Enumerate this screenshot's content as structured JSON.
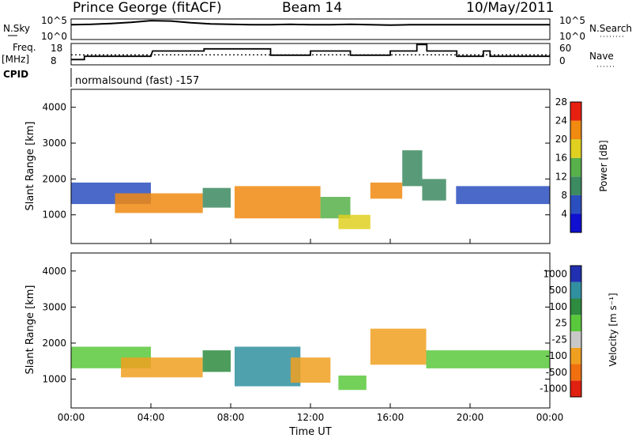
{
  "header": {
    "station": "Prince George (fitACF)",
    "beam": "Beam 14",
    "date": "10/May/2011"
  },
  "panels": {
    "nsky": {
      "label": "N.Sky",
      "ticks": [
        "10^5",
        "10^0"
      ]
    },
    "nsearch": {
      "label": "N.Search",
      "ticks": [
        "10^5",
        "10^0"
      ]
    },
    "freq": {
      "label_line1": "Freq.",
      "label_line2": "[MHz]",
      "ticks": [
        "18",
        "8"
      ]
    },
    "nave": {
      "label": "Nave",
      "ticks": [
        "60",
        "0"
      ]
    },
    "cpid": {
      "label": "CPID",
      "value": "normalsound (fast) -157"
    }
  },
  "chart_data": [
    {
      "type": "line",
      "name": "N.Sky / N.Search",
      "x": [
        "00:00",
        "01:00",
        "02:00",
        "03:00",
        "04:00",
        "05:00",
        "06:00",
        "07:00",
        "08:00",
        "09:00",
        "10:00",
        "11:00",
        "12:00",
        "13:00",
        "14:00",
        "15:00",
        "16:00",
        "17:00",
        "18:00",
        "19:00",
        "20:00",
        "21:00",
        "22:00",
        "23:00",
        "24:00"
      ],
      "series": [
        {
          "name": "N.Sky",
          "values": [
            3.6,
            3.7,
            3.9,
            4.2,
            4.6,
            4.5,
            4.1,
            3.8,
            3.7,
            3.6,
            3.6,
            3.7,
            3.6,
            3.6,
            3.7,
            3.6,
            3.5,
            3.6,
            3.6,
            3.6,
            3.6,
            3.6,
            3.6,
            3.6,
            3.6
          ]
        }
      ],
      "ylim": [
        0,
        5
      ]
    },
    {
      "type": "line",
      "name": "Freq / Nave",
      "x": [
        "00:00",
        "00:40",
        "00:40",
        "04:00",
        "04:00",
        "04:05",
        "04:05",
        "06:40",
        "06:40",
        "10:00",
        "10:00",
        "12:00",
        "12:00",
        "14:00",
        "14:00",
        "16:00",
        "16:00",
        "17:20",
        "17:20",
        "17:50",
        "17:50",
        "19:20",
        "19:20",
        "20:40",
        "20:40",
        "21:00",
        "21:00",
        "24:00"
      ],
      "series": [
        {
          "name": "Freq (MHz)",
          "values": [
            10.5,
            10.5,
            12.0,
            12.0,
            12.0,
            14.5,
            14.5,
            14.5,
            15.5,
            15.5,
            12.5,
            12.5,
            14.5,
            14.5,
            12.5,
            12.5,
            14.5,
            14.5,
            17.5,
            17.5,
            14.5,
            14.5,
            12.0,
            12.0,
            14.5,
            14.5,
            12.0,
            12.0
          ]
        },
        {
          "name": "Nave",
          "values": [
            28,
            28,
            28,
            28,
            28,
            28,
            28,
            28,
            28,
            28,
            28,
            28,
            28,
            28,
            28,
            28,
            28,
            28,
            28,
            28,
            28,
            28,
            28,
            28,
            28,
            28,
            28,
            28
          ]
        }
      ],
      "ylim_left": [
        8,
        18
      ],
      "ylim_right": [
        0,
        60
      ]
    },
    {
      "type": "heatmap",
      "name": "Power",
      "ylabel": "Slant Range [km]",
      "yticks": [
        "1000",
        "2000",
        "3000",
        "4000"
      ],
      "ylim": [
        200,
        4500
      ],
      "colorbar": {
        "label": "Power [dB]",
        "ticks": [
          "4",
          "8",
          "12",
          "16",
          "20",
          "24",
          "28"
        ],
        "colors": [
          "#1010d0",
          "#2c4fc0",
          "#3c8a60",
          "#57b04a",
          "#e0d020",
          "#f08a10",
          "#e82010"
        ]
      },
      "regions": [
        {
          "t0": 0.0,
          "t1": 4.0,
          "r0": 1300,
          "r1": 1900,
          "value": 10
        },
        {
          "t0": 2.2,
          "t1": 6.6,
          "r0": 1050,
          "r1": 1600,
          "value": 26
        },
        {
          "t0": 6.6,
          "t1": 8.0,
          "r0": 1200,
          "r1": 1750,
          "value": 14
        },
        {
          "t0": 8.2,
          "t1": 12.5,
          "r0": 900,
          "r1": 1800,
          "value": 27
        },
        {
          "t0": 12.5,
          "t1": 14.0,
          "r0": 900,
          "r1": 1500,
          "value": 18
        },
        {
          "t0": 13.4,
          "t1": 15.0,
          "r0": 600,
          "r1": 1000,
          "value": 22
        },
        {
          "t0": 15.0,
          "t1": 16.6,
          "r0": 1450,
          "r1": 1900,
          "value": 26
        },
        {
          "t0": 16.6,
          "t1": 17.6,
          "r0": 1800,
          "r1": 2800,
          "value": 12
        },
        {
          "t0": 17.6,
          "t1": 18.8,
          "r0": 1400,
          "r1": 2000,
          "value": 14
        },
        {
          "t0": 19.3,
          "t1": 24.0,
          "r0": 1300,
          "r1": 1800,
          "value": 10
        }
      ],
      "xticks": [
        "00:00",
        "04:00",
        "08:00",
        "12:00",
        "16:00",
        "20:00",
        "00:00"
      ]
    },
    {
      "type": "heatmap",
      "name": "Velocity",
      "ylabel": "Slant Range [km]",
      "xlabel": "Time UT",
      "yticks": [
        "1000",
        "2000",
        "3000",
        "4000"
      ],
      "ylim": [
        200,
        4500
      ],
      "colorbar": {
        "label": "Velocity [m s⁻¹]",
        "ticks": [
          "1000",
          "500",
          "100",
          "25",
          "-25",
          "-100",
          "-500",
          "-1000"
        ],
        "colors": [
          "#2030b0",
          "#3090a0",
          "#2e8b40",
          "#5ac83c",
          "#c8c8c8",
          "#f0a020",
          "#f07010",
          "#e02010"
        ]
      },
      "regions": [
        {
          "t0": 0.0,
          "t1": 4.0,
          "r0": 1300,
          "r1": 1900,
          "value": 0
        },
        {
          "t0": 2.5,
          "t1": 6.6,
          "r0": 1050,
          "r1": 1600,
          "value": -150
        },
        {
          "t0": 6.6,
          "t1": 8.0,
          "r0": 1200,
          "r1": 1800,
          "value": 120
        },
        {
          "t0": 8.2,
          "t1": 11.5,
          "r0": 800,
          "r1": 1900,
          "value": 300
        },
        {
          "t0": 11.0,
          "t1": 13.0,
          "r0": 900,
          "r1": 1600,
          "value": -200
        },
        {
          "t0": 13.4,
          "t1": 14.8,
          "r0": 700,
          "r1": 1100,
          "value": 0
        },
        {
          "t0": 15.0,
          "t1": 17.8,
          "r0": 1400,
          "r1": 2400,
          "value": -200
        },
        {
          "t0": 17.8,
          "t1": 24.0,
          "r0": 1300,
          "r1": 1800,
          "value": 0
        }
      ],
      "xticks": [
        "00:00",
        "04:00",
        "08:00",
        "12:00",
        "16:00",
        "20:00",
        "00:00"
      ]
    }
  ]
}
